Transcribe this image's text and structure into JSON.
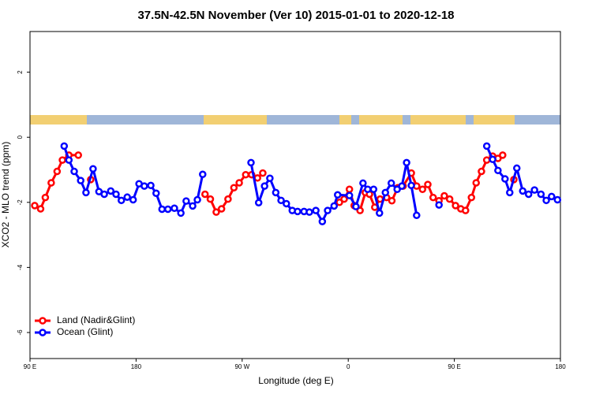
{
  "chart_data": {
    "type": "line",
    "title": "37.5N-42.5N November (Ver 10)   2015-01-01 to 2020-12-18",
    "x_label": "Longitude (deg E)",
    "y_label": "XCO2 - MLO trend (ppm)",
    "xlim": [
      90,
      540
    ],
    "ylim": [
      -6.8,
      3.25
    ],
    "xticks": [
      {
        "value": 90,
        "label": "90 E"
      },
      {
        "value": 180,
        "label": "180"
      },
      {
        "value": 270,
        "label": "90 W"
      },
      {
        "value": 360,
        "label": "0"
      },
      {
        "value": 450,
        "label": "90 E"
      },
      {
        "value": 540,
        "label": "180"
      }
    ],
    "yticks": [
      -6,
      -4,
      -2,
      0,
      2
    ],
    "legend": "bottomleft",
    "series": [
      {
        "name": "Land (Nadir&Glint)",
        "color": "#ff0000",
        "x": [
          94,
          99,
          103,
          108,
          113,
          117.5,
          123,
          131,
          null,
          141.5,
          null,
          238.5,
          243,
          248,
          252.5,
          258,
          263,
          267.5,
          273,
          278,
          283,
          287.5,
          null,
          352.5,
          356.5,
          361,
          365,
          370,
          374.5,
          378,
          382.5,
          387,
          392.5,
          397,
          402,
          406.5,
          413.5,
          418,
          423,
          427.5,
          432,
          437,
          441.5,
          446,
          451,
          455.5,
          459.5,
          464.5,
          468.5,
          473,
          477.5,
          482.5,
          487,
          491,
          null,
          500.5
        ],
        "values": [
          -2.1,
          -2.2,
          -1.85,
          -1.4,
          -1.05,
          -0.7,
          -0.55,
          -0.55,
          null,
          -1.3,
          null,
          -1.75,
          -1.9,
          -2.3,
          -2.2,
          -1.9,
          -1.55,
          -1.4,
          -1.15,
          -1.15,
          -1.25,
          -1.1,
          null,
          -2.0,
          -1.9,
          -1.6,
          -2.1,
          -2.25,
          -1.7,
          -1.75,
          -2.15,
          -1.9,
          -1.85,
          -1.95,
          -1.55,
          -1.5,
          -1.1,
          -1.5,
          -1.6,
          -1.45,
          -1.85,
          -1.95,
          -1.8,
          -1.9,
          -2.1,
          -2.2,
          -2.25,
          -1.85,
          -1.4,
          -1.05,
          -0.7,
          -0.58,
          -0.65,
          -0.55,
          null,
          -1.3
        ]
      },
      {
        "name": "Ocean (Glint)",
        "color": "#0000ff",
        "x": [
          119,
          123,
          127.5,
          133,
          137.5,
          143.5,
          148.5,
          153,
          158.5,
          163,
          167.5,
          172.5,
          177.5,
          182.5,
          187,
          192.5,
          197,
          202,
          207,
          212.5,
          218,
          222.5,
          228,
          232,
          236.5,
          null,
          277.5,
          284,
          289,
          293.5,
          298.5,
          303,
          307.5,
          312.5,
          317,
          322.5,
          327,
          332.5,
          338,
          342.5,
          348,
          351,
          361,
          366.5,
          372.5,
          376.5,
          381.5,
          386.5,
          391.5,
          396.5,
          401.5,
          405.5,
          409.5,
          413.5,
          418,
          null,
          437,
          null,
          477.5,
          482.5,
          487,
          493,
          497,
          503,
          508,
          513,
          518,
          523.5,
          528,
          532.5,
          537.5
        ],
        "values": [
          -0.27,
          -0.7,
          -1.05,
          -1.33,
          -1.7,
          -0.97,
          -1.67,
          -1.75,
          -1.65,
          -1.75,
          -1.94,
          -1.84,
          -1.92,
          -1.43,
          -1.5,
          -1.48,
          -1.72,
          -2.21,
          -2.21,
          -2.18,
          -2.33,
          -1.96,
          -2.11,
          -1.92,
          -1.14,
          null,
          -0.78,
          -2.01,
          -1.5,
          -1.26,
          -1.7,
          -1.94,
          -2.04,
          -2.25,
          -2.28,
          -2.28,
          -2.3,
          -2.25,
          -2.59,
          -2.25,
          -2.11,
          -1.77,
          -1.79,
          -2.13,
          -1.41,
          -1.6,
          -1.6,
          -2.33,
          -1.7,
          -1.41,
          -1.6,
          -1.5,
          -0.78,
          -1.48,
          -2.4,
          null,
          -2.08,
          null,
          -0.27,
          -0.68,
          -1.02,
          -1.28,
          -1.7,
          -0.95,
          -1.65,
          -1.75,
          -1.62,
          -1.75,
          -1.94,
          -1.82,
          -1.92
        ]
      }
    ]
  }
}
